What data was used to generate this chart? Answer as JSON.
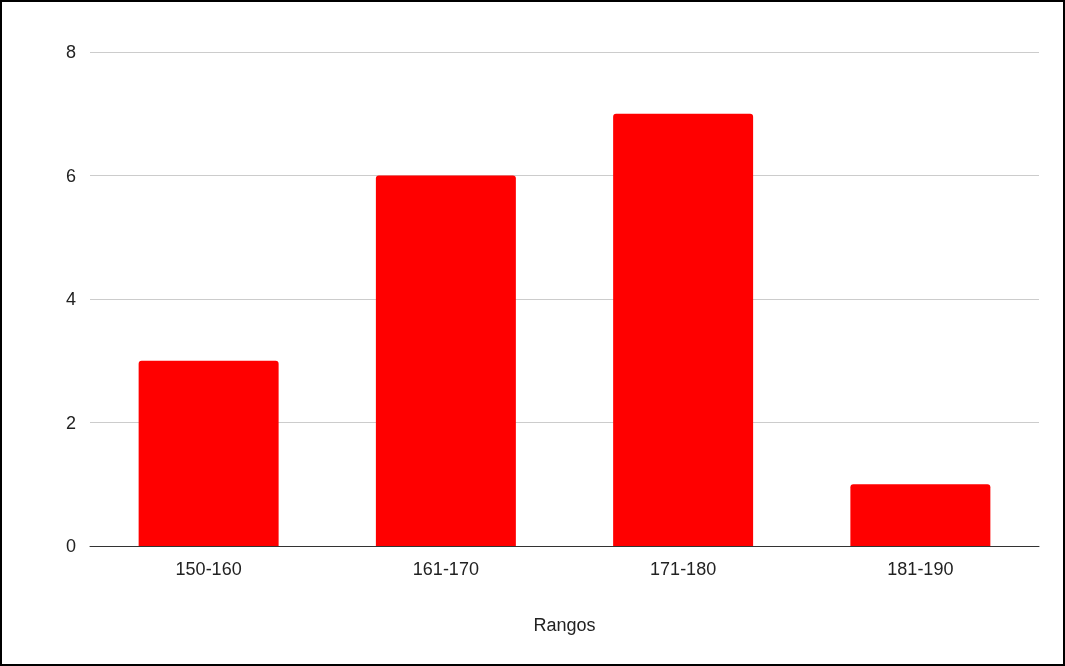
{
  "chart_data": {
    "type": "bar",
    "xlabel": "Rangos",
    "categories": [
      "150-160",
      "161-170",
      "171-180",
      "181-190"
    ],
    "values": [
      3,
      6,
      7,
      1
    ],
    "color": "#ff0000",
    "ylim": [
      0,
      8
    ],
    "yticks": [
      0,
      2,
      4,
      6,
      8
    ],
    "grid": "y"
  }
}
